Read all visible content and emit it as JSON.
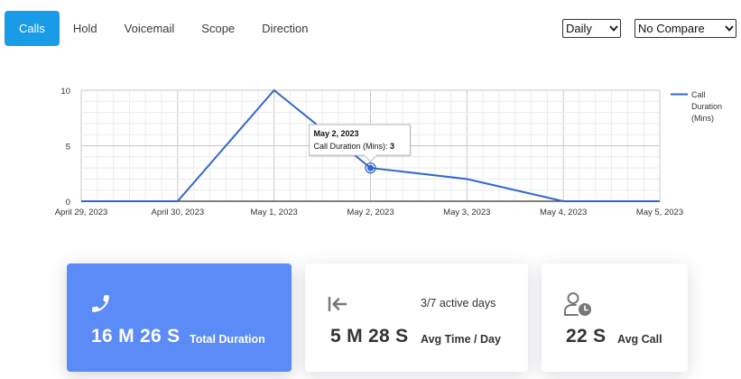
{
  "tabs": [
    {
      "label": "Calls",
      "active": true
    },
    {
      "label": "Hold",
      "active": false
    },
    {
      "label": "Voicemail",
      "active": false
    },
    {
      "label": "Scope",
      "active": false
    },
    {
      "label": "Direction",
      "active": false
    }
  ],
  "controls": {
    "period_select": "Daily",
    "compare_select": "No Compare"
  },
  "chart_data": {
    "type": "line",
    "x": [
      "April 29, 2023",
      "April 30, 2023",
      "May 1, 2023",
      "May 2, 2023",
      "May 3, 2023",
      "May 4, 2023",
      "May 5, 2023"
    ],
    "series": [
      {
        "name": "Call Duration (Mins)",
        "values": [
          0,
          0,
          10,
          3,
          2,
          0,
          0
        ],
        "color": "#3366cc"
      }
    ],
    "ylim": [
      0,
      10
    ],
    "yticks": [
      "0",
      "5",
      "10"
    ],
    "legend_lines": [
      "Call",
      "Duration",
      "(Mins)"
    ],
    "legend_position": "right",
    "grid": true,
    "tooltip": {
      "title": "May 2, 2023",
      "label": "Call Duration (Mins): ",
      "value": "3",
      "index": 3
    }
  },
  "cards": {
    "total": {
      "value": "16 M 26 S",
      "label": "Total Duration",
      "icon": "phone-icon"
    },
    "avg_day": {
      "value": "5 M 28 S",
      "label": "Avg Time / Day",
      "sub": "3/7 active days",
      "icon": "arrow-left-bar-icon"
    },
    "avg_call": {
      "value": "22 S",
      "label": "Avg Call",
      "icon": "user-clock-icon"
    }
  }
}
